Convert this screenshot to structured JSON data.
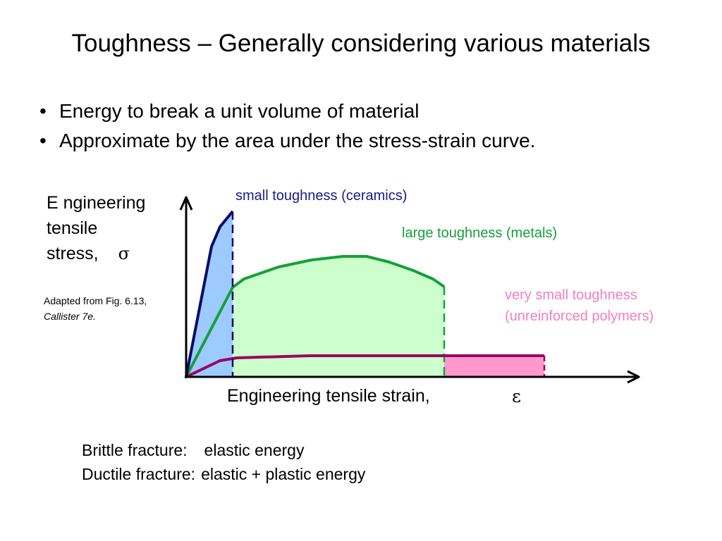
{
  "title": "Toughness – Generally considering various materials",
  "bullets": [
    "Energy to break a unit volume of material",
    "Approximate by the area under the stress-strain curve."
  ],
  "diagram": {
    "y_axis_label": "E ngineering tensile stress,",
    "y_axis_symbol": "σ",
    "x_axis_label": "Engineering tensile strain,",
    "x_axis_symbol": "ε",
    "source_line1": "Adapted from Fig. 6.13,",
    "source_line2": "Callister 7e.",
    "curves": [
      {
        "label": "small toughness (ceramics)",
        "color": "#0b0b6e",
        "fill": "#9ecbff"
      },
      {
        "label": "large toughness (metals)",
        "color": "#16a03a",
        "fill": "#ccffcc"
      },
      {
        "label_line1": "very small toughness",
        "label_line2": "(unreinforced polymers)",
        "color": "#990066",
        "fill": "#ff99cc",
        "label_color": "#f47fc1"
      }
    ]
  },
  "fracture": [
    {
      "type": "Brittle fracture:",
      "energy": "elastic energy"
    },
    {
      "type": "Ductile fracture:",
      "energy": "elastic + plastic energy"
    }
  ]
}
